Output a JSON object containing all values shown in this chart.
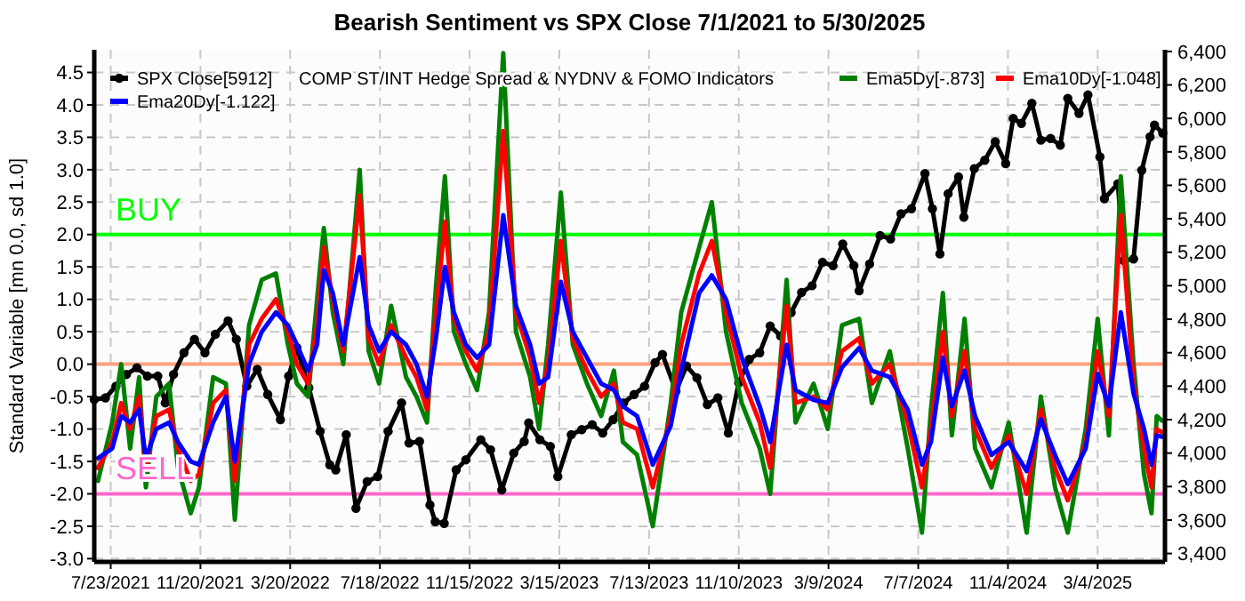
{
  "chart_data": {
    "type": "line",
    "title": "Bearish Sentiment vs SPX Close 7/1/2021 to 5/30/2025",
    "ylabel": "Standard Variable [mn 0.0, sd 1.0]",
    "annotations": [
      "COMP ST/INT Hedge Spread & NYDNV & FOMO Indicators"
    ],
    "x": [
      "2021-07-06",
      "2021-07-25",
      "2021-08-06",
      "2021-08-18",
      "2021-08-30",
      "2021-09-08",
      "2021-09-22",
      "2021-10-09",
      "2021-10-21",
      "2021-11-07",
      "2021-11-18",
      "2021-12-07",
      "2021-12-24",
      "2022-01-05",
      "2022-01-24",
      "2022-02-10",
      "2022-03-01",
      "2022-03-17",
      "2022-03-29",
      "2022-04-13",
      "2022-04-25",
      "2022-05-04",
      "2022-05-16",
      "2022-05-30",
      "2022-06-21",
      "2022-07-03",
      "2022-07-17",
      "2022-08-02",
      "2022-08-22",
      "2022-09-05",
      "2022-09-19",
      "2022-10-01",
      "2022-10-13",
      "2022-10-25",
      "2022-11-10",
      "2022-11-25",
      "2022-12-11",
      "2022-12-30",
      "2023-01-16",
      "2023-02-04",
      "2023-02-16",
      "2023-02-28",
      "2023-03-17",
      "2023-04-02",
      "2023-04-21",
      "2023-05-10",
      "2023-05-27",
      "2023-06-08",
      "2023-06-27",
      "2023-07-18",
      "2023-08-11",
      "2023-08-25",
      "2023-09-18",
      "2023-10-05",
      "2023-10-24",
      "2023-11-14",
      "2023-12-08",
      "2023-12-22",
      "2024-01-13",
      "2024-01-25",
      "2024-02-18",
      "2024-03-08",
      "2024-03-27",
      "2024-04-19",
      "2024-05-06",
      "2024-05-30",
      "2024-06-23",
      "2024-07-12",
      "2024-07-24",
      "2024-08-09",
      "2024-08-21",
      "2024-09-07",
      "2024-09-21",
      "2024-10-13",
      "2024-11-05",
      "2024-11-29",
      "2024-12-18",
      "2025-01-06",
      "2025-01-23",
      "2025-02-16",
      "2025-03-04",
      "2025-03-19",
      "2025-04-04",
      "2025-04-21",
      "2025-05-05",
      "2025-05-15",
      "2025-05-22",
      "2025-05-29"
    ],
    "series": [
      {
        "name": "SPX Close[5912]",
        "color": "#000000",
        "axis": "y2",
        "marker": "circle",
        "x": [
          "2021-07-01",
          "2021-07-16",
          "2021-07-30",
          "2021-08-13",
          "2021-08-27",
          "2021-09-10",
          "2021-09-24",
          "2021-10-04",
          "2021-10-15",
          "2021-10-29",
          "2021-11-12",
          "2021-11-26",
          "2021-12-10",
          "2021-12-27",
          "2022-01-07",
          "2022-01-21",
          "2022-02-04",
          "2022-02-18",
          "2022-03-07",
          "2022-03-18",
          "2022-03-29",
          "2022-04-14",
          "2022-04-29",
          "2022-05-12",
          "2022-05-20",
          "2022-06-03",
          "2022-06-16",
          "2022-07-01",
          "2022-07-15",
          "2022-07-29",
          "2022-08-16",
          "2022-08-26",
          "2022-09-09",
          "2022-09-23",
          "2022-09-30",
          "2022-10-12",
          "2022-10-28",
          "2022-11-10",
          "2022-11-30",
          "2022-12-13",
          "2022-12-28",
          "2023-01-13",
          "2023-01-27",
          "2023-02-02",
          "2023-02-17",
          "2023-03-03",
          "2023-03-13",
          "2023-03-31",
          "2023-04-14",
          "2023-04-28",
          "2023-05-12",
          "2023-05-26",
          "2023-06-09",
          "2023-06-23",
          "2023-07-07",
          "2023-07-21",
          "2023-07-31",
          "2023-08-18",
          "2023-09-01",
          "2023-09-15",
          "2023-09-29",
          "2023-10-13",
          "2023-10-27",
          "2023-11-10",
          "2023-11-24",
          "2023-12-08",
          "2023-12-22",
          "2024-01-05",
          "2024-01-19",
          "2024-02-02",
          "2024-02-16",
          "2024-03-01",
          "2024-03-15",
          "2024-03-28",
          "2024-04-12",
          "2024-04-19",
          "2024-05-03",
          "2024-05-17",
          "2024-05-31",
          "2024-06-14",
          "2024-06-28",
          "2024-07-16",
          "2024-07-26",
          "2024-08-05",
          "2024-08-16",
          "2024-08-30",
          "2024-09-06",
          "2024-09-20",
          "2024-10-04",
          "2024-10-18",
          "2024-11-01",
          "2024-11-11",
          "2024-11-22",
          "2024-12-06",
          "2024-12-18",
          "2024-12-31",
          "2025-01-13",
          "2025-01-23",
          "2025-02-07",
          "2025-02-19",
          "2025-03-07",
          "2025-03-13",
          "2025-03-31",
          "2025-04-08",
          "2025-04-21",
          "2025-05-02",
          "2025-05-13",
          "2025-05-19",
          "2025-05-30"
        ],
        "values": [
          4320,
          4330,
          4400,
          4470,
          4510,
          4460,
          4460,
          4300,
          4470,
          4600,
          4680,
          4600,
          4710,
          4790,
          4680,
          4400,
          4500,
          4350,
          4200,
          4460,
          4630,
          4390,
          4130,
          3930,
          3900,
          4110,
          3670,
          3830,
          3860,
          4130,
          4300,
          4060,
          4070,
          3690,
          3590,
          3580,
          3900,
          3960,
          4080,
          4020,
          3780,
          4000,
          4070,
          4180,
          4080,
          4040,
          3860,
          4110,
          4140,
          4170,
          4120,
          4200,
          4300,
          4350,
          4400,
          4540,
          4590,
          4370,
          4520,
          4450,
          4290,
          4330,
          4120,
          4420,
          4560,
          4600,
          4760,
          4700,
          4840,
          4960,
          5000,
          5140,
          5120,
          5250,
          5120,
          4970,
          5130,
          5300,
          5280,
          5430,
          5460,
          5670,
          5460,
          5190,
          5550,
          5650,
          5410,
          5700,
          5750,
          5860,
          5730,
          6000,
          5970,
          6090,
          5870,
          5880,
          5840,
          6120,
          6030,
          6140,
          5770,
          5520,
          5610,
          5150,
          5160,
          5690,
          5890,
          5960,
          5912
        ]
      },
      {
        "name": "Ema5Dy[-.873]",
        "color": "#008000",
        "values": [
          -1.8,
          -0.9,
          0.0,
          -1.3,
          -0.2,
          -1.9,
          -0.5,
          -0.3,
          -1.6,
          -2.3,
          -1.9,
          -0.2,
          -0.3,
          -2.4,
          0.6,
          1.3,
          1.4,
          0.3,
          -0.3,
          -0.5,
          1.0,
          2.1,
          0.8,
          0.0,
          3.0,
          0.2,
          -0.3,
          0.9,
          -0.2,
          -0.5,
          -0.9,
          1.2,
          2.9,
          0.5,
          0.0,
          -0.4,
          0.8,
          4.8,
          0.5,
          -0.2,
          -1.0,
          0.3,
          2.65,
          0.3,
          -0.3,
          -0.8,
          -0.1,
          -1.2,
          -1.4,
          -2.5,
          -0.6,
          0.8,
          1.8,
          2.5,
          0.5,
          -0.6,
          -1.3,
          -2.0,
          1.3,
          -0.9,
          -0.3,
          -1.0,
          0.6,
          0.7,
          -0.6,
          0.2,
          -1.3,
          -2.6,
          -0.7,
          1.1,
          -1.1,
          0.7,
          -1.3,
          -1.9,
          -0.9,
          -2.6,
          -0.5,
          -1.9,
          -2.6,
          -1.0,
          0.7,
          -1.1,
          2.9,
          0.0,
          -1.7,
          -2.3,
          -0.8,
          -0.87
        ]
      },
      {
        "name": "Ema10Dy[-1.048]",
        "color": "#ff0000",
        "values": [
          -1.6,
          -1.2,
          -0.6,
          -1.0,
          -0.5,
          -1.6,
          -0.8,
          -0.7,
          -1.3,
          -1.8,
          -1.7,
          -0.6,
          -0.4,
          -1.8,
          0.3,
          0.7,
          1.0,
          0.5,
          0.0,
          -0.3,
          0.6,
          1.8,
          1.0,
          0.2,
          2.6,
          0.4,
          0.0,
          0.6,
          0.1,
          -0.2,
          -0.7,
          0.8,
          2.2,
          0.7,
          0.2,
          -0.1,
          0.5,
          3.6,
          0.8,
          0.1,
          -0.6,
          0.0,
          1.9,
          0.4,
          -0.1,
          -0.5,
          -0.3,
          -0.9,
          -1.0,
          -1.9,
          -0.8,
          0.3,
          1.4,
          1.9,
          0.8,
          -0.2,
          -0.9,
          -1.6,
          0.9,
          -0.6,
          -0.5,
          -0.7,
          0.2,
          0.4,
          -0.3,
          0.0,
          -0.9,
          -1.9,
          -1.0,
          0.5,
          -0.8,
          0.2,
          -1.0,
          -1.6,
          -1.1,
          -2.0,
          -0.7,
          -1.6,
          -2.1,
          -1.2,
          0.2,
          -0.8,
          2.3,
          -0.3,
          -1.3,
          -1.9,
          -1.0,
          -1.05
        ]
      },
      {
        "name": "Ema20Dy[-1.122]",
        "color": "#0000ff",
        "values": [
          -1.45,
          -1.3,
          -0.8,
          -0.9,
          -0.7,
          -1.45,
          -1.0,
          -0.9,
          -1.2,
          -1.5,
          -1.55,
          -0.9,
          -0.5,
          -1.5,
          0.0,
          0.5,
          0.8,
          0.6,
          0.3,
          -0.1,
          0.3,
          1.45,
          1.1,
          0.3,
          1.65,
          0.6,
          0.2,
          0.5,
          0.3,
          0.0,
          -0.5,
          0.4,
          1.5,
          0.8,
          0.3,
          0.1,
          0.3,
          2.3,
          0.9,
          0.3,
          -0.3,
          -0.2,
          1.27,
          0.5,
          0.1,
          -0.3,
          -0.4,
          -0.65,
          -0.8,
          -1.55,
          -0.95,
          -0.1,
          1.1,
          1.37,
          1.0,
          0.1,
          -0.65,
          -1.2,
          0.3,
          -0.4,
          -0.55,
          -0.6,
          -0.05,
          0.25,
          -0.1,
          -0.2,
          -0.7,
          -1.55,
          -1.2,
          0.1,
          -0.65,
          -0.1,
          -0.8,
          -1.4,
          -1.2,
          -1.65,
          -0.85,
          -1.4,
          -1.85,
          -1.3,
          -0.15,
          -0.65,
          0.8,
          -0.45,
          -1.0,
          -1.55,
          -1.1,
          -1.12
        ]
      }
    ],
    "xlim": [
      "2021-07-01",
      "2025-06-02"
    ],
    "xticks": [
      {
        "value": "2021-07-23",
        "label": "7/23/2021"
      },
      {
        "value": "2021-11-20",
        "label": "11/20/2021"
      },
      {
        "value": "2022-03-20",
        "label": "3/20/2022"
      },
      {
        "value": "2022-07-18",
        "label": "7/18/2022"
      },
      {
        "value": "2022-11-15",
        "label": "11/15/2022"
      },
      {
        "value": "2023-03-15",
        "label": "3/15/2023"
      },
      {
        "value": "2023-07-13",
        "label": "7/13/2023"
      },
      {
        "value": "2023-11-10",
        "label": "11/10/2023"
      },
      {
        "value": "2024-03-09",
        "label": "3/9/2024"
      },
      {
        "value": "2024-07-07",
        "label": "7/7/2024"
      },
      {
        "value": "2024-11-04",
        "label": "11/4/2024"
      },
      {
        "value": "2025-03-04",
        "label": "3/4/2025"
      }
    ],
    "ylim": [
      -3.05,
      4.85
    ],
    "yticks": [
      {
        "value": -3,
        "label": "-3.0"
      },
      {
        "value": -2.5,
        "label": "-2.5"
      },
      {
        "value": -2,
        "label": "-2.0"
      },
      {
        "value": -1.5,
        "label": "-1.5"
      },
      {
        "value": -1,
        "label": "-1.0"
      },
      {
        "value": -0.5,
        "label": "-0.5"
      },
      {
        "value": 0,
        "label": "0.0"
      },
      {
        "value": 0.5,
        "label": "0.5"
      },
      {
        "value": 1,
        "label": "1.0"
      },
      {
        "value": 1.5,
        "label": "1.5"
      },
      {
        "value": 2,
        "label": "2.0"
      },
      {
        "value": 2.5,
        "label": "2.5"
      },
      {
        "value": 3,
        "label": "3.0"
      },
      {
        "value": 3.5,
        "label": "3.5"
      },
      {
        "value": 4,
        "label": "4.0"
      },
      {
        "value": 4.5,
        "label": "4.5"
      }
    ],
    "y2lim": [
      3350,
      6410
    ],
    "y2ticks": [
      {
        "value": 3400,
        "label": "3,400"
      },
      {
        "value": 3600,
        "label": "3,600"
      },
      {
        "value": 3800,
        "label": "3,800"
      },
      {
        "value": 4000,
        "label": "4,000"
      },
      {
        "value": 4200,
        "label": "4,200"
      },
      {
        "value": 4400,
        "label": "4,400"
      },
      {
        "value": 4600,
        "label": "4,600"
      },
      {
        "value": 4800,
        "label": "4,800"
      },
      {
        "value": 5000,
        "label": "5,000"
      },
      {
        "value": 5200,
        "label": "5,200"
      },
      {
        "value": 5400,
        "label": "5,400"
      },
      {
        "value": 5600,
        "label": "5,600"
      },
      {
        "value": 5800,
        "label": "5,800"
      },
      {
        "value": 6000,
        "label": "6,000"
      },
      {
        "value": 6200,
        "label": "6,200"
      },
      {
        "value": 6400,
        "label": "6,400"
      }
    ],
    "ref_lines": [
      {
        "axis": "y",
        "value": 2,
        "label": "BUY",
        "color": "#00ff00"
      },
      {
        "axis": "y",
        "value": 0,
        "color": "#ffa07a"
      },
      {
        "axis": "y",
        "value": -2,
        "label": "SELL",
        "color": "#ff66cc"
      }
    ],
    "grid": true,
    "legend": "top",
    "line_style": "solid"
  }
}
